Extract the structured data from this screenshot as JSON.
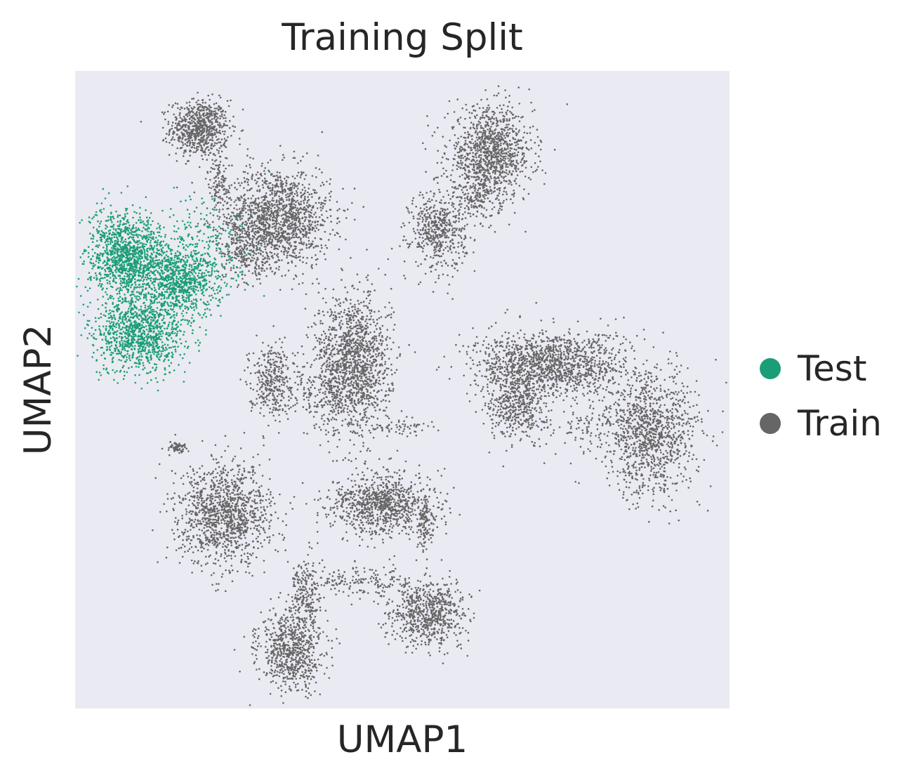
{
  "chart_data": {
    "type": "scatter",
    "title": "Training Split",
    "xlabel": "UMAP1",
    "ylabel": "UMAP2",
    "grid": false,
    "xticks": [],
    "yticks": [],
    "legend_position": "right",
    "background_color": "#eaeaf2",
    "xlim": [
      0,
      100
    ],
    "ylim": [
      0,
      100
    ],
    "series": [
      {
        "name": "Test",
        "color": "#1b9e77",
        "clusters": [
          {
            "cx": 8,
            "cy": 71,
            "sx": 3.4,
            "sy": 3.8,
            "n": 1200
          },
          {
            "cx": 16,
            "cy": 67,
            "sx": 3.2,
            "sy": 3.0,
            "n": 700
          },
          {
            "cx": 10,
            "cy": 59,
            "sx": 4.2,
            "sy": 3.6,
            "n": 1100
          },
          {
            "cx": 19,
            "cy": 72,
            "sx": 4.0,
            "sy": 4.5,
            "n": 250
          }
        ]
      },
      {
        "name": "Train",
        "color": "#666666",
        "clusters": [
          {
            "cx": 19,
            "cy": 91,
            "sx": 2.6,
            "sy": 2.6,
            "n": 700
          },
          {
            "cx": 31,
            "cy": 77,
            "sx": 4.8,
            "sy": 4.6,
            "n": 1400
          },
          {
            "cx": 63.5,
            "cy": 87,
            "sx": 3.8,
            "sy": 4.2,
            "n": 1100
          },
          {
            "cx": 55.5,
            "cy": 75,
            "sx": 2.5,
            "sy": 3.6,
            "n": 500
          },
          {
            "cx": 42.5,
            "cy": 54,
            "sx": 3.4,
            "sy": 6.4,
            "n": 1400
          },
          {
            "cx": 30,
            "cy": 51.5,
            "sx": 2.0,
            "sy": 3.4,
            "n": 350
          },
          {
            "cx": 73,
            "cy": 54,
            "sx": 7.0,
            "sy": 3.0,
            "n": 1300
          },
          {
            "cx": 67.5,
            "cy": 48,
            "sx": 2.6,
            "sy": 3.6,
            "n": 500
          },
          {
            "cx": 88,
            "cy": 43,
            "sx": 4.2,
            "sy": 5.6,
            "n": 1100
          },
          {
            "cx": 23,
            "cy": 30.5,
            "sx": 4.2,
            "sy": 4.6,
            "n": 1200
          },
          {
            "cx": 47,
            "cy": 32,
            "sx": 4.6,
            "sy": 2.8,
            "n": 900
          },
          {
            "cx": 33,
            "cy": 9,
            "sx": 2.9,
            "sy": 3.6,
            "n": 700
          },
          {
            "cx": 35,
            "cy": 18,
            "sx": 1.5,
            "sy": 3.5,
            "n": 220
          },
          {
            "cx": 54,
            "cy": 15,
            "sx": 3.4,
            "sy": 3.0,
            "n": 700
          },
          {
            "cx": 26,
            "cy": 72,
            "sx": 2.5,
            "sy": 3.2,
            "n": 250
          },
          {
            "cx": 22,
            "cy": 82,
            "sx": 1.2,
            "sy": 3.5,
            "n": 120
          },
          {
            "cx": 61.5,
            "cy": 80,
            "sx": 1.8,
            "sy": 2.5,
            "n": 150
          },
          {
            "cx": 38,
            "cy": 49,
            "sx": 3.0,
            "sy": 2.0,
            "n": 120
          },
          {
            "cx": 50,
            "cy": 44,
            "sx": 3.6,
            "sy": 0.7,
            "n": 60
          },
          {
            "cx": 78,
            "cy": 44,
            "sx": 3.2,
            "sy": 2.4,
            "n": 90
          },
          {
            "cx": 44,
            "cy": 20,
            "sx": 5.0,
            "sy": 1.6,
            "n": 160
          },
          {
            "cx": 15.5,
            "cy": 41,
            "sx": 0.9,
            "sy": 0.5,
            "n": 60
          },
          {
            "cx": 53.5,
            "cy": 29,
            "sx": 1.0,
            "sy": 2.4,
            "n": 120
          }
        ]
      }
    ]
  }
}
